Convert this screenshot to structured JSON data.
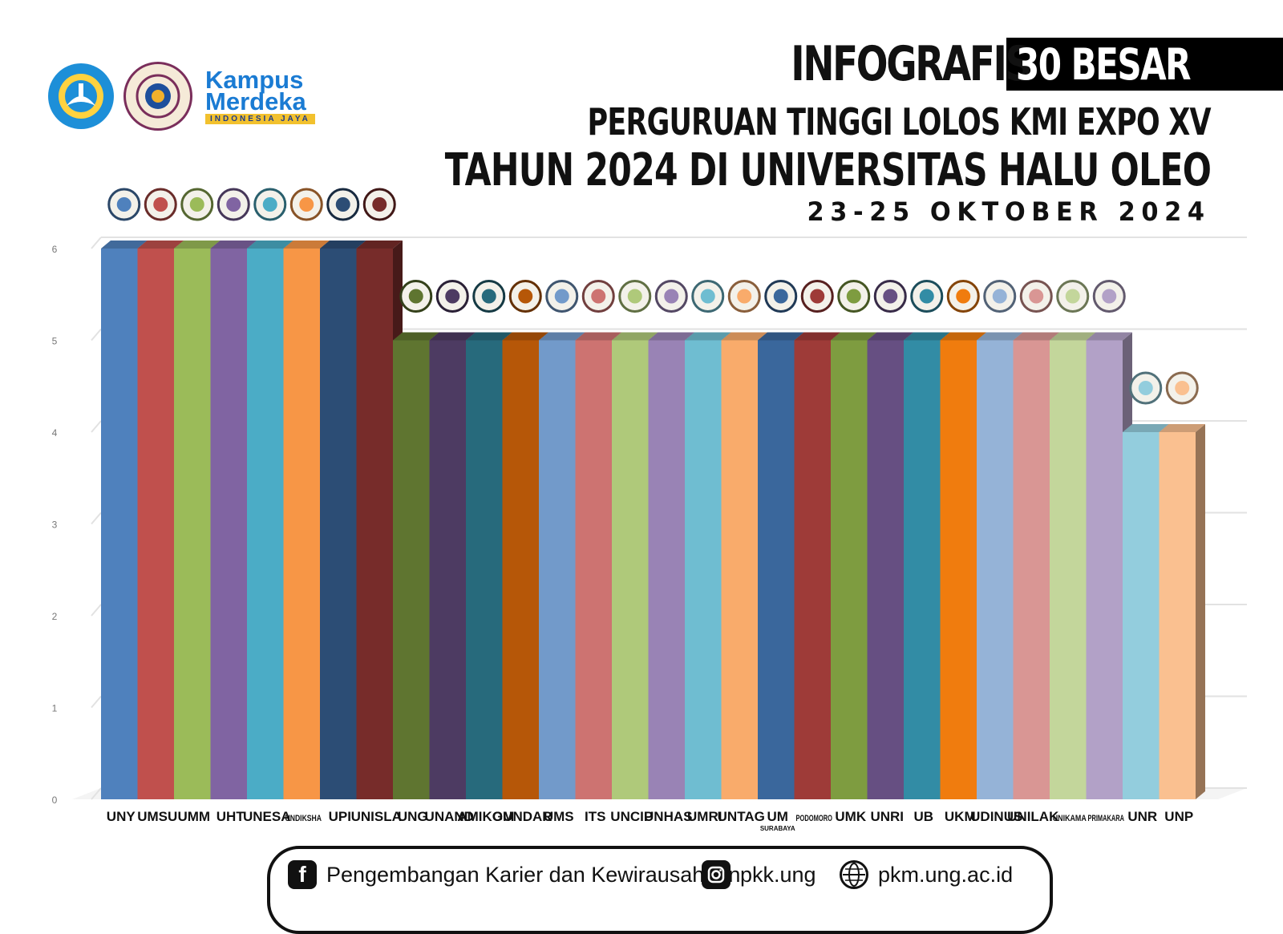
{
  "header": {
    "title_a": "INFOGRAFIS",
    "title_b": "30 BESAR",
    "line2": "PERGURUAN TINGGI LOLOS KMI EXPO XV",
    "line3": "TAHUN 2024 DI UNIVERSITAS HALU OLEO",
    "date": "23-25 OKTOBER 2024"
  },
  "brand": {
    "line1": "Kampus",
    "line2": "Merdeka",
    "tagline": "INDONESIA JAYA"
  },
  "footer": {
    "facebook": "Pengembangan Karier dan Kewirausahaan",
    "instagram": "pkk.ung",
    "website": "pkm.ung.ac.id"
  },
  "chart_data": {
    "type": "bar",
    "title": "",
    "xlabel": "",
    "ylabel": "",
    "ylim": [
      0,
      6
    ],
    "yticks": [
      0,
      1,
      2,
      3,
      4,
      5,
      6
    ],
    "grid": true,
    "style": "3d",
    "categories": [
      {
        "label": "UNY",
        "sub": ""
      },
      {
        "label": "UMSU",
        "sub": ""
      },
      {
        "label": "UMM",
        "sub": ""
      },
      {
        "label": "UHT",
        "sub": ""
      },
      {
        "label": "UNESA",
        "sub": ""
      },
      {
        "label": "UNDIKSHA",
        "sub": ""
      },
      {
        "label": "UPI",
        "sub": ""
      },
      {
        "label": "UNISLA",
        "sub": ""
      },
      {
        "label": "UNG",
        "sub": ""
      },
      {
        "label": "UNAND",
        "sub": ""
      },
      {
        "label": "AMIKOM",
        "sub": ""
      },
      {
        "label": "GUNDAR",
        "sub": ""
      },
      {
        "label": "UMS",
        "sub": ""
      },
      {
        "label": "ITS",
        "sub": ""
      },
      {
        "label": "UNCIP",
        "sub": ""
      },
      {
        "label": "UNHAS",
        "sub": ""
      },
      {
        "label": "UMRI",
        "sub": ""
      },
      {
        "label": "UNTAG",
        "sub": ""
      },
      {
        "label": "UM",
        "sub": "SURABAYA"
      },
      {
        "label": "PODOMORO",
        "sub": ""
      },
      {
        "label": "UMK",
        "sub": ""
      },
      {
        "label": "UNRI",
        "sub": ""
      },
      {
        "label": "UB",
        "sub": ""
      },
      {
        "label": "UKM",
        "sub": ""
      },
      {
        "label": "UDINUS",
        "sub": ""
      },
      {
        "label": "UNILAK",
        "sub": ""
      },
      {
        "label": "UNIKAMA",
        "sub": ""
      },
      {
        "label": "PRIMAKARA",
        "sub": ""
      },
      {
        "label": "UNR",
        "sub": ""
      },
      {
        "label": "UNP",
        "sub": ""
      }
    ],
    "values": [
      6,
      6,
      6,
      6,
      6,
      6,
      6,
      6,
      5,
      5,
      5,
      5,
      5,
      5,
      5,
      5,
      5,
      5,
      5,
      5,
      5,
      5,
      5,
      5,
      5,
      5,
      5,
      5,
      4,
      4
    ],
    "colors": [
      "#4f81bd",
      "#c0504d",
      "#9bbb59",
      "#8064a2",
      "#4bacc6",
      "#f79646",
      "#2c4d75",
      "#772c2a",
      "#5f7530",
      "#4d3b62",
      "#276a7c",
      "#b65708",
      "#729aca",
      "#cd7371",
      "#afc97a",
      "#9983b5",
      "#6fbdd1",
      "#f9ab6b",
      "#3a679c",
      "#9e3b38",
      "#7e9c40",
      "#664f82",
      "#328ca5",
      "#f07c0e",
      "#95b3d7",
      "#d99694",
      "#c3d69b",
      "#b2a1c7",
      "#93cddd",
      "#fac090"
    ]
  }
}
